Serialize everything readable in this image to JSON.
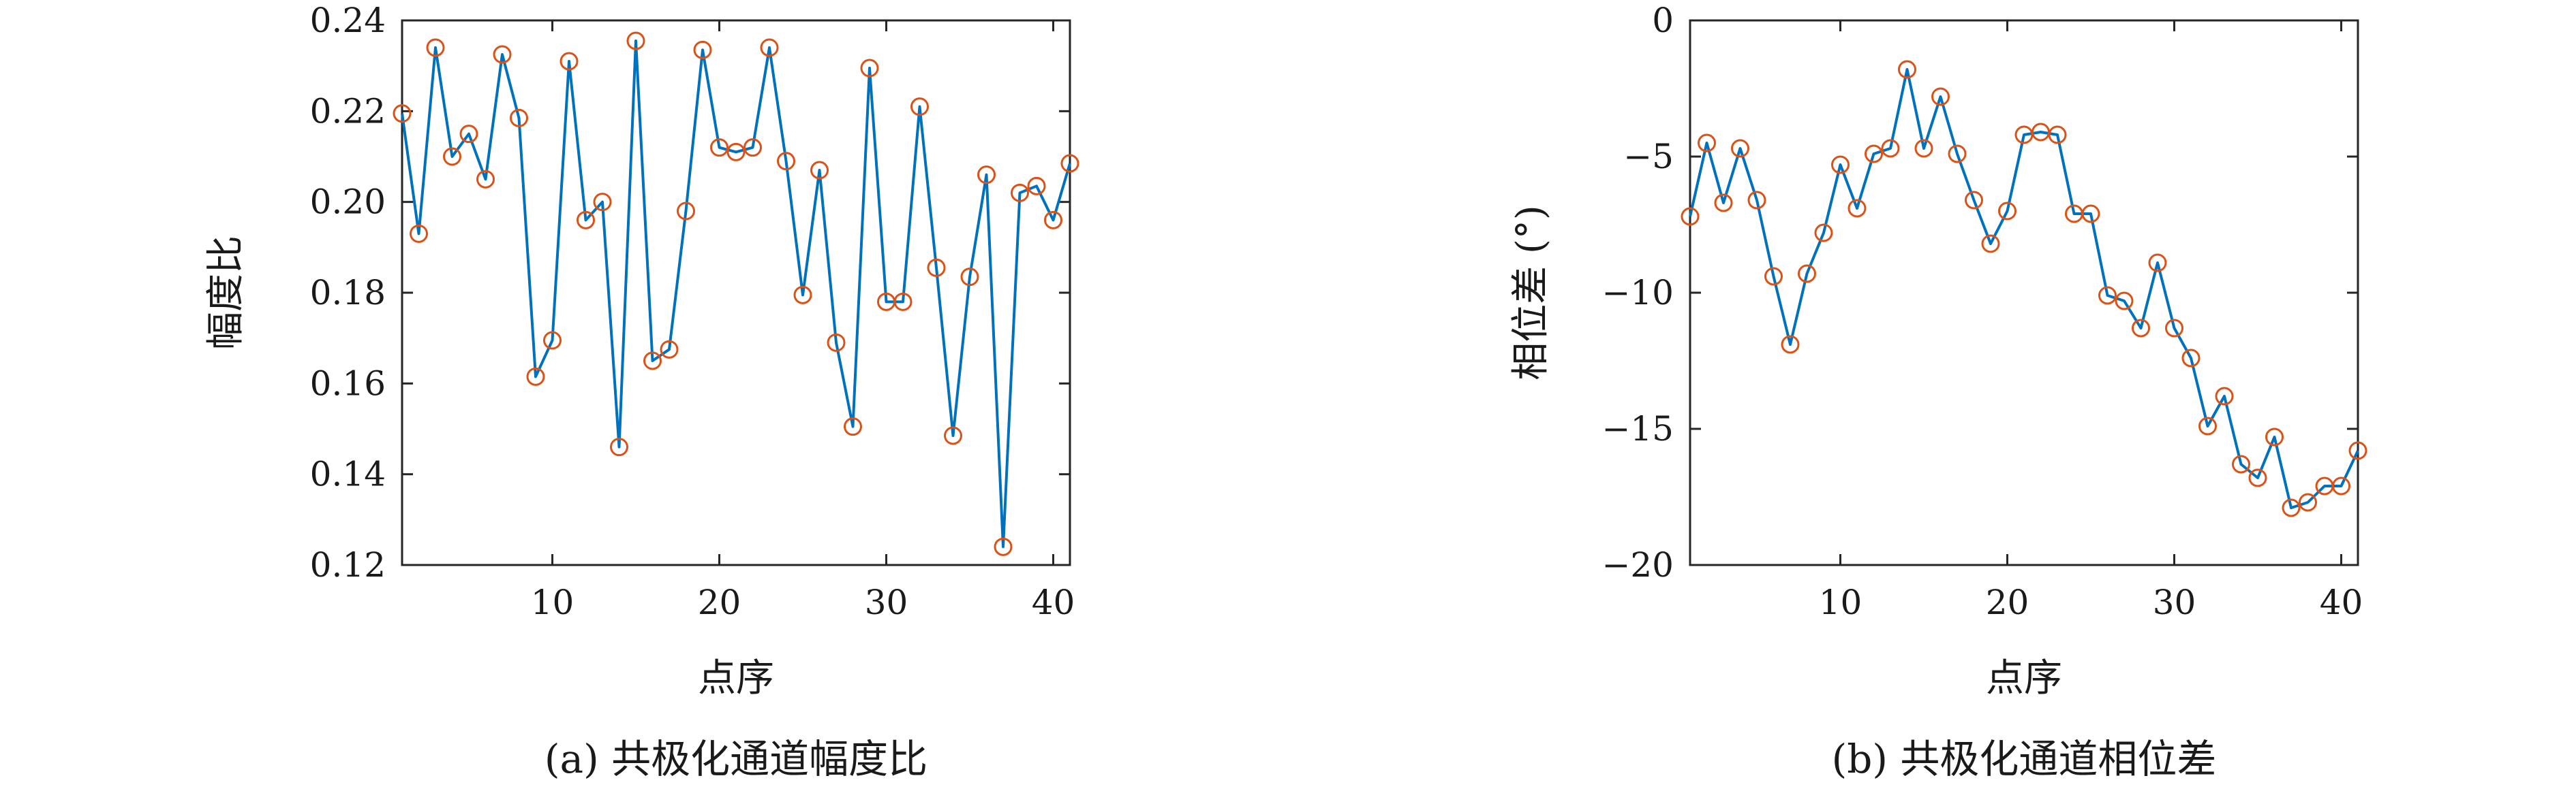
{
  "chart_data": [
    {
      "type": "line",
      "caption": "(a) 共极化通道幅度比",
      "xlabel": "点序",
      "ylabel": "幅度比",
      "xlim": [
        1,
        41
      ],
      "ylim": [
        0.12,
        0.24
      ],
      "xticks": [
        10,
        20,
        30,
        40
      ],
      "yticks": [
        0.12,
        0.14,
        0.16,
        0.18,
        0.2,
        0.22,
        0.24
      ],
      "ytick_labels": [
        "0.12",
        "0.14",
        "0.16",
        "0.18",
        "0.20",
        "0.22",
        "0.24"
      ],
      "grid": false,
      "line_color": "#0072BD",
      "marker_color": "#D95319",
      "marker": "circle",
      "x": [
        1,
        2,
        3,
        4,
        5,
        6,
        7,
        8,
        9,
        10,
        11,
        12,
        13,
        14,
        15,
        16,
        17,
        18,
        19,
        20,
        21,
        22,
        23,
        24,
        25,
        26,
        27,
        28,
        29,
        30,
        31,
        32,
        33,
        34,
        35,
        36,
        37,
        38,
        39,
        40,
        41
      ],
      "y": [
        0.2195,
        0.193,
        0.234,
        0.21,
        0.215,
        0.205,
        0.2325,
        0.2185,
        0.1615,
        0.1695,
        0.231,
        0.196,
        0.2,
        0.146,
        0.2355,
        0.165,
        0.1675,
        0.198,
        0.2335,
        0.212,
        0.211,
        0.212,
        0.234,
        0.209,
        0.1795,
        0.207,
        0.169,
        0.1505,
        0.2295,
        0.178,
        0.178,
        0.221,
        0.1855,
        0.1485,
        0.1835,
        0.206,
        0.124,
        0.202,
        0.2035,
        0.196,
        0.2085
      ]
    },
    {
      "type": "line",
      "caption": "(b) 共极化通道相位差",
      "xlabel": "点序",
      "ylabel": "相位差 (°)",
      "xlim": [
        1,
        41
      ],
      "ylim": [
        -20,
        0
      ],
      "xticks": [
        10,
        20,
        30,
        40
      ],
      "yticks": [
        -20,
        -15,
        -10,
        -5,
        0
      ],
      "ytick_labels": [
        "−20",
        "−15",
        "−10",
        "−5",
        "0"
      ],
      "grid": false,
      "line_color": "#0072BD",
      "marker_color": "#D95319",
      "marker": "circle",
      "x": [
        1,
        2,
        3,
        4,
        5,
        6,
        7,
        8,
        9,
        10,
        11,
        12,
        13,
        14,
        15,
        16,
        17,
        18,
        19,
        20,
        21,
        22,
        23,
        24,
        25,
        26,
        27,
        28,
        29,
        30,
        31,
        32,
        33,
        34,
        35,
        36,
        37,
        38,
        39,
        40,
        41
      ],
      "y": [
        -7.2,
        -4.5,
        -6.7,
        -4.7,
        -6.6,
        -9.4,
        -11.9,
        -9.3,
        -7.8,
        -5.3,
        -6.9,
        -4.9,
        -4.7,
        -1.8,
        -4.7,
        -2.8,
        -4.9,
        -6.6,
        -8.2,
        -7.0,
        -4.2,
        -4.1,
        -4.2,
        -7.1,
        -7.1,
        -10.1,
        -10.3,
        -11.3,
        -8.9,
        -11.3,
        -12.4,
        -14.9,
        -13.8,
        -16.3,
        -16.8,
        -15.3,
        -17.9,
        -17.7,
        -17.1,
        -17.1,
        -15.8
      ]
    }
  ]
}
